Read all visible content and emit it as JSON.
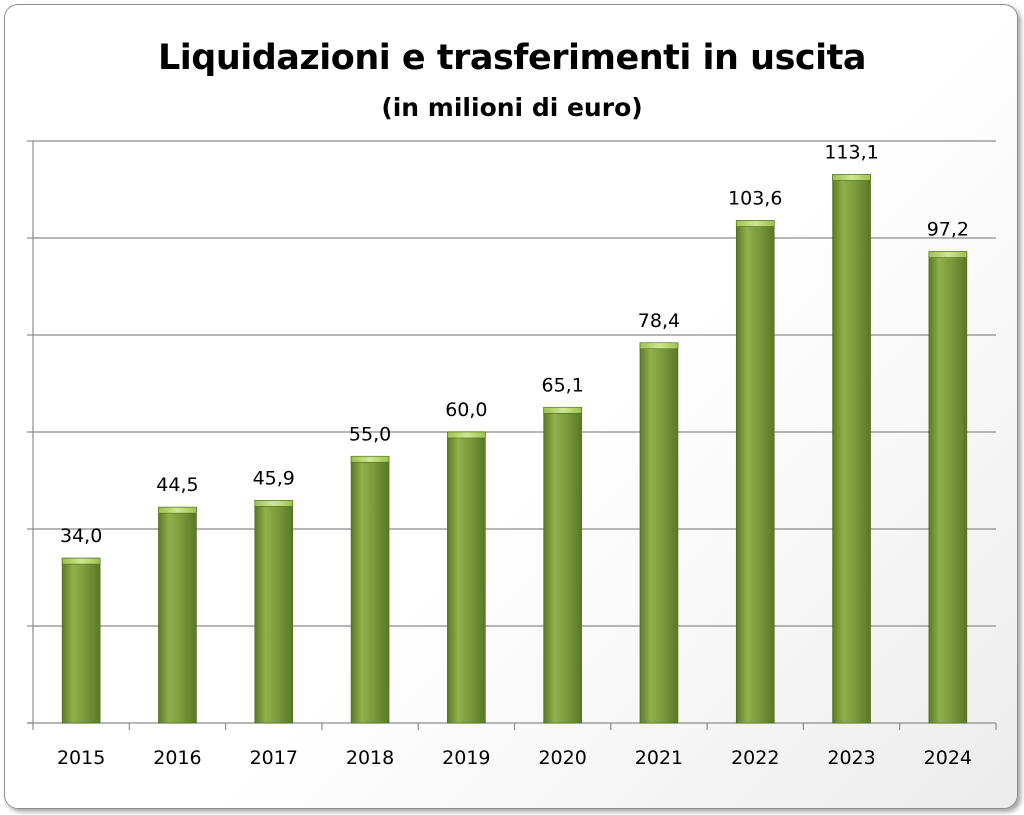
{
  "chart_data": {
    "type": "bar",
    "title": "Liquidazioni e trasferimenti in uscita",
    "subtitle": "(in milioni di euro)",
    "categories": [
      "2015",
      "2016",
      "2017",
      "2018",
      "2019",
      "2020",
      "2021",
      "2022",
      "2023",
      "2024"
    ],
    "values": [
      34.0,
      44.5,
      45.9,
      55.0,
      60.0,
      65.1,
      78.4,
      103.6,
      113.1,
      97.2
    ],
    "value_labels": [
      "34,0",
      "44,5",
      "45,9",
      "55,0",
      "60,0",
      "65,1",
      "78,4",
      "103,6",
      "113,1",
      "97,2"
    ],
    "xlabel": "",
    "ylabel": "",
    "ylim": [
      0,
      120
    ],
    "gridlines": true,
    "legend": "none",
    "colors": {
      "bar": "#7a9a3c",
      "bar_top": "#b4d46a",
      "grid": "#8c8c8c"
    }
  }
}
